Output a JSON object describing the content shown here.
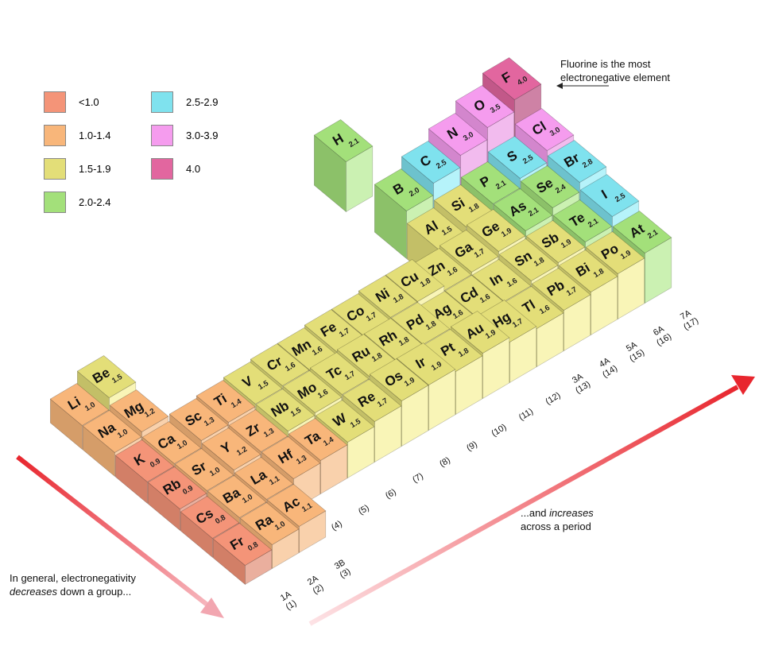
{
  "legend": [
    {
      "label": "<1.0",
      "color": "#f49478"
    },
    {
      "label": "1.0-1.4",
      "color": "#f8b67a"
    },
    {
      "label": "1.5-1.9",
      "color": "#e3de78"
    },
    {
      "label": "2.0-2.4",
      "color": "#a3e07a"
    },
    {
      "label": "2.5-2.9",
      "color": "#7fe2ee"
    },
    {
      "label": "3.0-3.9",
      "color": "#f59cee"
    },
    {
      "label": "4.0",
      "color": "#e2669f"
    }
  ],
  "annotations": {
    "fluorine": [
      "Fluorine is the most",
      "electronegative element"
    ],
    "down": {
      "line1": "In general, electronegativity",
      "emphasis": "decreases",
      "rest": "down a group..."
    },
    "across": {
      "start": "...and",
      "emphasis": "increases",
      "line2": "across a period"
    }
  },
  "table": {
    "hydrogen": {
      "symbol": "H",
      "en": "2.1",
      "color": "#a3e07a"
    },
    "rows": [
      [
        {
          "symbol": "Li",
          "en": "1.0",
          "color": "#f8b67a"
        },
        {
          "symbol": "Be",
          "en": "1.5",
          "color": "#e3de78"
        },
        null,
        null,
        null,
        null,
        null,
        null,
        null,
        null,
        null,
        null,
        {
          "symbol": "B",
          "en": "2.0",
          "color": "#a3e07a"
        },
        {
          "symbol": "C",
          "en": "2.5",
          "color": "#7fe2ee"
        },
        {
          "symbol": "N",
          "en": "3.0",
          "color": "#f59cee"
        },
        {
          "symbol": "O",
          "en": "3.5",
          "color": "#f59cee"
        },
        {
          "symbol": "F",
          "en": "4.0",
          "color": "#e2669f"
        }
      ],
      [
        {
          "symbol": "Na",
          "en": "1.0",
          "color": "#f8b67a"
        },
        {
          "symbol": "Mg",
          "en": "1.2",
          "color": "#f8b67a"
        },
        null,
        null,
        null,
        null,
        null,
        null,
        null,
        null,
        null,
        null,
        {
          "symbol": "Al",
          "en": "1.5",
          "color": "#e3de78"
        },
        {
          "symbol": "Si",
          "en": "1.8",
          "color": "#e3de78"
        },
        {
          "symbol": "P",
          "en": "2.1",
          "color": "#a3e07a"
        },
        {
          "symbol": "S",
          "en": "2.5",
          "color": "#7fe2ee"
        },
        {
          "symbol": "Cl",
          "en": "3.0",
          "color": "#f59cee"
        }
      ],
      [
        {
          "symbol": "K",
          "en": "0.9",
          "color": "#f49478"
        },
        {
          "symbol": "Ca",
          "en": "1.0",
          "color": "#f8b67a"
        },
        {
          "symbol": "Sc",
          "en": "1.3",
          "color": "#f8b67a"
        },
        {
          "symbol": "Ti",
          "en": "1.4",
          "color": "#f8b67a"
        },
        {
          "symbol": "V",
          "en": "1.5",
          "color": "#e3de78"
        },
        {
          "symbol": "Cr",
          "en": "1.6",
          "color": "#e3de78"
        },
        {
          "symbol": "Mn",
          "en": "1.6",
          "color": "#e3de78"
        },
        {
          "symbol": "Fe",
          "en": "1.7",
          "color": "#e3de78"
        },
        {
          "symbol": "Co",
          "en": "1.7",
          "color": "#e3de78"
        },
        {
          "symbol": "Ni",
          "en": "1.8",
          "color": "#e3de78"
        },
        {
          "symbol": "Cu",
          "en": "1.8",
          "color": "#e3de78"
        },
        {
          "symbol": "Zn",
          "en": "1.6",
          "color": "#e3de78"
        },
        {
          "symbol": "Ga",
          "en": "1.7",
          "color": "#e3de78"
        },
        {
          "symbol": "Ge",
          "en": "1.9",
          "color": "#e3de78"
        },
        {
          "symbol": "As",
          "en": "2.1",
          "color": "#a3e07a"
        },
        {
          "symbol": "Se",
          "en": "2.4",
          "color": "#a3e07a"
        },
        {
          "symbol": "Br",
          "en": "2.8",
          "color": "#7fe2ee"
        }
      ],
      [
        {
          "symbol": "Rb",
          "en": "0.9",
          "color": "#f49478"
        },
        {
          "symbol": "Sr",
          "en": "1.0",
          "color": "#f8b67a"
        },
        {
          "symbol": "Y",
          "en": "1.2",
          "color": "#f8b67a"
        },
        {
          "symbol": "Zr",
          "en": "1.3",
          "color": "#f8b67a"
        },
        {
          "symbol": "Nb",
          "en": "1.5",
          "color": "#e3de78"
        },
        {
          "symbol": "Mo",
          "en": "1.6",
          "color": "#e3de78"
        },
        {
          "symbol": "Tc",
          "en": "1.7",
          "color": "#e3de78"
        },
        {
          "symbol": "Ru",
          "en": "1.8",
          "color": "#e3de78"
        },
        {
          "symbol": "Rh",
          "en": "1.8",
          "color": "#e3de78"
        },
        {
          "symbol": "Pd",
          "en": "1.8",
          "color": "#e3de78"
        },
        {
          "symbol": "Ag",
          "en": "1.6",
          "color": "#e3de78"
        },
        {
          "symbol": "Cd",
          "en": "1.6",
          "color": "#e3de78"
        },
        {
          "symbol": "In",
          "en": "1.6",
          "color": "#e3de78"
        },
        {
          "symbol": "Sn",
          "en": "1.8",
          "color": "#e3de78"
        },
        {
          "symbol": "Sb",
          "en": "1.9",
          "color": "#e3de78"
        },
        {
          "symbol": "Te",
          "en": "2.1",
          "color": "#a3e07a"
        },
        {
          "symbol": "I",
          "en": "2.5",
          "color": "#7fe2ee"
        }
      ],
      [
        {
          "symbol": "Cs",
          "en": "0.8",
          "color": "#f49478"
        },
        {
          "symbol": "Ba",
          "en": "1.0",
          "color": "#f8b67a"
        },
        {
          "symbol": "La",
          "en": "1.1",
          "color": "#f8b67a"
        },
        {
          "symbol": "Hf",
          "en": "1.3",
          "color": "#f8b67a"
        },
        {
          "symbol": "Ta",
          "en": "1.4",
          "color": "#f8b67a"
        },
        {
          "symbol": "W",
          "en": "1.5",
          "color": "#e3de78"
        },
        {
          "symbol": "Re",
          "en": "1.7",
          "color": "#e3de78"
        },
        {
          "symbol": "Os",
          "en": "1.9",
          "color": "#e3de78"
        },
        {
          "symbol": "Ir",
          "en": "1.9",
          "color": "#e3de78"
        },
        {
          "symbol": "Pt",
          "en": "1.8",
          "color": "#e3de78"
        },
        {
          "symbol": "Au",
          "en": "1.9",
          "color": "#e3de78"
        },
        {
          "symbol": "Hg",
          "en": "1.7",
          "color": "#e3de78"
        },
        {
          "symbol": "Tl",
          "en": "1.6",
          "color": "#e3de78"
        },
        {
          "symbol": "Pb",
          "en": "1.7",
          "color": "#e3de78"
        },
        {
          "symbol": "Bi",
          "en": "1.8",
          "color": "#e3de78"
        },
        {
          "symbol": "Po",
          "en": "1.9",
          "color": "#e3de78"
        },
        {
          "symbol": "At",
          "en": "2.1",
          "color": "#a3e07a"
        }
      ],
      [
        {
          "symbol": "Fr",
          "en": "0.8",
          "color": "#f49478"
        },
        {
          "symbol": "Ra",
          "en": "1.0",
          "color": "#f8b67a"
        },
        {
          "symbol": "Ac",
          "en": "1.1",
          "color": "#f8b67a"
        }
      ]
    ],
    "groups": [
      {
        "name": "1A",
        "number": "(1)"
      },
      {
        "name": "2A",
        "number": "(2)"
      },
      {
        "name": "3B",
        "number": "(3)"
      },
      {
        "number": "(4)"
      },
      {
        "number": "(5)"
      },
      {
        "number": "(6)"
      },
      {
        "number": "(7)"
      },
      {
        "number": "(8)"
      },
      {
        "number": "(9)"
      },
      {
        "number": "(10)"
      },
      {
        "number": "(11)"
      },
      {
        "number": "(12)"
      },
      {
        "name": "3A",
        "number": "(13)"
      },
      {
        "name": "4A",
        "number": "(14)"
      },
      {
        "name": "5A",
        "number": "(15)"
      },
      {
        "name": "6A",
        "number": "(16)"
      },
      {
        "name": "7A",
        "number": "(17)"
      }
    ]
  }
}
